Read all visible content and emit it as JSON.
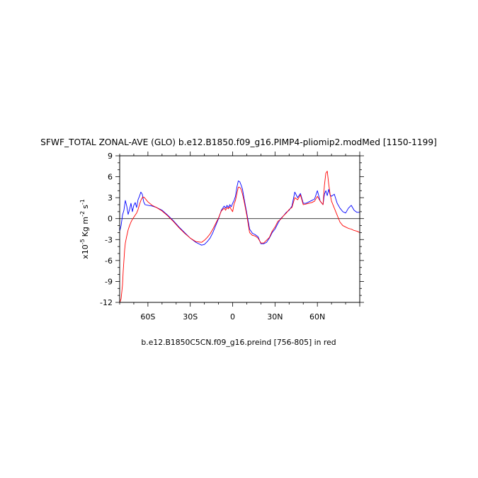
{
  "chart_data": {
    "type": "line",
    "title": "SFWF_TOTAL ZONAL-AVE (GLO) b.e12.B1850.f09_g16.PIMP4-pliomip2.modMed [1150-1199]",
    "subtitle": "b.e12.B1850C5CN.f09_g16.preind [756-805] in red",
    "ylabel": {
      "prefix": "x10",
      "exp": "-5",
      "unit1": "Kg m",
      "exp2": "-2",
      "unit2": "s",
      "exp3": "-1"
    },
    "xlim": [
      -80,
      90
    ],
    "ylim": [
      -12,
      9
    ],
    "x_ticks": [
      {
        "value": -60,
        "label": "60S"
      },
      {
        "value": -30,
        "label": "30S"
      },
      {
        "value": 0,
        "label": "0"
      },
      {
        "value": 30,
        "label": "30N"
      },
      {
        "value": 60,
        "label": "60N"
      }
    ],
    "y_ticks": [
      {
        "value": 9,
        "label": "9"
      },
      {
        "value": 6,
        "label": "6"
      },
      {
        "value": 3,
        "label": "3"
      },
      {
        "value": 0,
        "label": "0"
      },
      {
        "value": -3,
        "label": "-3"
      },
      {
        "value": -6,
        "label": "-6"
      },
      {
        "value": -9,
        "label": "-9"
      },
      {
        "value": -12,
        "label": "-12"
      }
    ],
    "reference_line": 0,
    "series": [
      {
        "color": "#0000ff",
        "x": [
          -80,
          -79,
          -78,
          -77,
          -76,
          -75,
          -74,
          -73,
          -72,
          -71,
          -70,
          -69,
          -68,
          -67,
          -66,
          -65,
          -64,
          -63,
          -62,
          -60,
          -57,
          -54,
          -50,
          -46,
          -42,
          -38,
          -34,
          -30,
          -26,
          -22,
          -20,
          -18,
          -16,
          -14,
          -12,
          -10,
          -8,
          -6,
          -5,
          -4,
          -3,
          -2,
          -1,
          0,
          1,
          2,
          3,
          4,
          5,
          6,
          7,
          8,
          10,
          12,
          14,
          16,
          18,
          20,
          22,
          24,
          26,
          28,
          30,
          32,
          34,
          36,
          38,
          40,
          42,
          44,
          46,
          48,
          50,
          52,
          54,
          56,
          58,
          60,
          62,
          64,
          65,
          66,
          67,
          68,
          69,
          70,
          72,
          74,
          76,
          78,
          80,
          82,
          84,
          86,
          88,
          90
        ],
        "y": [
          -1.8,
          -1.0,
          0.5,
          1.2,
          2.6,
          1.8,
          0.6,
          1.3,
          2.2,
          1.0,
          1.9,
          2.3,
          1.6,
          2.7,
          3.2,
          3.8,
          3.5,
          2.4,
          2.0,
          1.9,
          1.8,
          1.6,
          1.2,
          0.5,
          -0.3,
          -1.2,
          -2.0,
          -2.8,
          -3.4,
          -3.8,
          -3.7,
          -3.3,
          -2.8,
          -2.0,
          -1.0,
          0.0,
          1.2,
          1.8,
          1.5,
          1.9,
          1.6,
          2.0,
          1.7,
          2.2,
          2.6,
          3.2,
          4.5,
          5.4,
          5.3,
          4.8,
          4.2,
          3.0,
          0.8,
          -1.5,
          -2.1,
          -2.3,
          -2.6,
          -3.6,
          -3.6,
          -3.4,
          -2.8,
          -2.0,
          -1.5,
          -0.7,
          0.0,
          0.4,
          0.9,
          1.2,
          1.8,
          3.8,
          3.0,
          3.6,
          2.2,
          2.2,
          2.4,
          2.6,
          2.8,
          4.0,
          2.5,
          2.0,
          3.5,
          4.0,
          3.3,
          4.2,
          3.4,
          3.2,
          3.5,
          2.2,
          1.5,
          1.0,
          0.8,
          1.5,
          1.9,
          1.2,
          0.9,
          0.9
        ]
      },
      {
        "color": "#ff0000",
        "x": [
          -80,
          -79.5,
          -79,
          -78.5,
          -78,
          -77.5,
          -77,
          -76.5,
          -76,
          -75,
          -74,
          -73,
          -72,
          -71,
          -70,
          -69,
          -68,
          -67,
          -66,
          -65,
          -64,
          -63,
          -62,
          -60,
          -57,
          -54,
          -50,
          -46,
          -42,
          -38,
          -34,
          -30,
          -26,
          -22,
          -20,
          -18,
          -16,
          -14,
          -12,
          -10,
          -8,
          -6,
          -5,
          -4,
          -3,
          -2,
          -1,
          0,
          1,
          2,
          3,
          4,
          5,
          6,
          7,
          8,
          10,
          12,
          14,
          16,
          18,
          20,
          22,
          24,
          26,
          28,
          30,
          32,
          34,
          36,
          38,
          40,
          42,
          44,
          46,
          48,
          50,
          52,
          54,
          56,
          58,
          60,
          62,
          64,
          65,
          66,
          67,
          68,
          69,
          70,
          72,
          74,
          76,
          78,
          80,
          82,
          84,
          86,
          88,
          90
        ],
        "y": [
          -12.0,
          -11.8,
          -11.5,
          -10.5,
          -9.5,
          -7.5,
          -6.0,
          -4.5,
          -3.5,
          -2.5,
          -1.6,
          -1.0,
          -0.5,
          -0.1,
          0.2,
          0.5,
          0.8,
          1.3,
          2.0,
          2.6,
          3.0,
          3.1,
          2.9,
          2.4,
          1.9,
          1.6,
          1.1,
          0.4,
          -0.4,
          -1.3,
          -2.1,
          -2.8,
          -3.3,
          -3.4,
          -3.1,
          -2.7,
          -2.2,
          -1.5,
          -0.7,
          0.1,
          1.1,
          1.5,
          1.2,
          1.6,
          1.4,
          1.7,
          1.3,
          1.0,
          2.1,
          2.6,
          3.6,
          4.5,
          4.5,
          4.2,
          3.5,
          2.6,
          0.5,
          -2.0,
          -2.4,
          -2.5,
          -2.8,
          -3.5,
          -3.5,
          -3.1,
          -2.7,
          -1.8,
          -1.2,
          -0.4,
          -0.1,
          0.4,
          0.8,
          1.3,
          1.6,
          3.0,
          2.7,
          3.4,
          2.0,
          2.1,
          2.2,
          2.3,
          2.5,
          3.2,
          2.5,
          2.0,
          4.8,
          6.5,
          6.8,
          5.0,
          3.5,
          2.5,
          1.5,
          0.5,
          -0.5,
          -1.0,
          -1.2,
          -1.4,
          -1.5,
          -1.7,
          -1.8,
          -2.0
        ]
      }
    ]
  }
}
